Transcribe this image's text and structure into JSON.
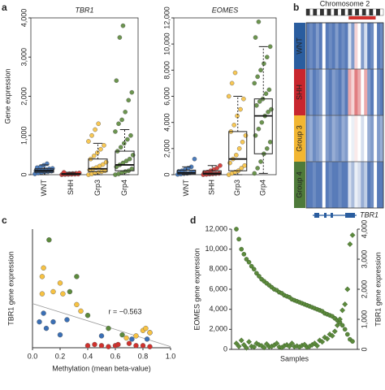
{
  "chart_data": [
    {
      "type": "box",
      "panel_label": "a",
      "title": "TBR1",
      "ylabel": "Gene expression",
      "categories": [
        "WNT",
        "SHH",
        "Grp3",
        "Grp4"
      ],
      "colors": [
        "#3a6fb5",
        "#d0312d",
        "#f7c242",
        "#5c8a3c"
      ],
      "boxes": [
        {
          "whisker_low": 0,
          "q1": 60,
          "median": 100,
          "q3": 150,
          "whisker_high": 250
        },
        {
          "whisker_low": 0,
          "q1": 5,
          "median": 15,
          "q3": 30,
          "whisker_high": 60
        },
        {
          "whisker_low": 0,
          "q1": 80,
          "median": 150,
          "q3": 400,
          "whisker_high": 800
        },
        {
          "whisker_low": 0,
          "q1": 100,
          "median": 250,
          "q3": 600,
          "whisker_high": 1150
        }
      ],
      "points": [
        [
          20,
          40,
          60,
          70,
          80,
          90,
          100,
          110,
          120,
          130,
          150,
          160,
          180,
          200,
          240,
          280
        ],
        [
          0,
          5,
          8,
          10,
          12,
          15,
          18,
          20,
          25,
          30,
          35,
          45,
          60
        ],
        [
          0,
          20,
          40,
          60,
          80,
          100,
          120,
          150,
          180,
          220,
          260,
          320,
          400,
          480,
          560,
          650,
          750,
          850,
          1000,
          1150,
          1300
        ],
        [
          0,
          20,
          50,
          80,
          100,
          150,
          200,
          250,
          300,
          350,
          400,
          500,
          600,
          700,
          800,
          900,
          1000,
          1100,
          1300,
          1400,
          1600,
          1900,
          2100,
          2400,
          3500,
          3800
        ]
      ],
      "ylim": [
        0,
        4000
      ],
      "yticks": [
        0,
        {
          "value": 1000,
          "label": "1,000"
        },
        {
          "value": 2000,
          "label": "2,000"
        },
        {
          "value": 3000,
          "label": "3,000"
        },
        {
          "value": 4000,
          "label": "4,000"
        }
      ]
    },
    {
      "type": "box",
      "title": "EOMES",
      "categories": [
        "WNT",
        "SHH",
        "Grp3",
        "Grp4"
      ],
      "colors": [
        "#3a6fb5",
        "#d0312d",
        "#f7c242",
        "#5c8a3c"
      ],
      "boxes": [
        {
          "whisker_low": 0,
          "q1": 50,
          "median": 150,
          "q3": 350,
          "whisker_high": 600
        },
        {
          "whisker_low": 0,
          "q1": 20,
          "median": 100,
          "q3": 300,
          "whisker_high": 700
        },
        {
          "whisker_low": 0,
          "q1": 300,
          "median": 1200,
          "q3": 3300,
          "whisker_high": 6000
        },
        {
          "whisker_low": 100,
          "q1": 1600,
          "median": 4500,
          "q3": 5800,
          "whisker_high": 9800
        }
      ],
      "points": [
        [
          20,
          50,
          80,
          100,
          150,
          200,
          250,
          300,
          400,
          500,
          600,
          1200
        ],
        [
          0,
          20,
          40,
          60,
          80,
          100,
          150,
          200,
          300,
          400,
          500,
          700
        ],
        [
          0,
          100,
          200,
          300,
          500,
          700,
          900,
          1200,
          1500,
          2000,
          2500,
          3000,
          3300,
          3800,
          4500,
          5000,
          5800,
          6000,
          7000,
          7800
        ],
        [
          100,
          500,
          1000,
          1600,
          2000,
          2500,
          3000,
          3500,
          4000,
          4500,
          4800,
          5000,
          5300,
          5600,
          5800,
          6200,
          6500,
          7000,
          7500,
          8000,
          8500,
          9000,
          9800,
          10500,
          11700
        ]
      ],
      "ylim": [
        0,
        12000
      ],
      "yticks": [
        0,
        {
          "value": 2000,
          "label": "2,000"
        },
        {
          "value": 4000,
          "label": "4,000"
        },
        {
          "value": 6000,
          "label": "6,000"
        },
        {
          "value": 8000,
          "label": "8,000"
        },
        {
          "value": 10000,
          "label": "10,000"
        },
        {
          "value": 12000,
          "label": "12,000"
        }
      ]
    },
    {
      "type": "heatmap",
      "panel_label": "b",
      "title": "Chromosome 2",
      "gene": "TBR1",
      "groups": [
        "WNT",
        "SHH",
        "Group 3",
        "Group 4"
      ],
      "group_colors": [
        "#2a5d9f",
        "#c8262e",
        "#f2b632",
        "#4e7a3a"
      ],
      "values": [
        [
          0.9,
          0.85,
          0.9,
          0.8,
          0.9,
          0.5,
          0.9,
          0.85,
          0.9,
          0.8,
          0.9,
          0.85,
          0.9,
          0.6,
          0.8,
          0.4,
          0.5,
          0.8,
          0.6,
          0.9,
          0.85,
          0.5,
          0.9,
          0.85
        ],
        [
          0.9,
          0.8,
          0.9,
          0.85,
          0.8,
          0.5,
          0.85,
          0.9,
          0.8,
          0.85,
          0.9,
          0.8,
          0.9,
          0.3,
          0.4,
          0.2,
          0.3,
          0.5,
          0.3,
          0.8,
          0.9,
          0.5,
          0.85,
          0.9
        ],
        [
          0.8,
          0.75,
          0.85,
          0.8,
          0.75,
          0.5,
          0.8,
          0.85,
          0.75,
          0.8,
          0.85,
          0.75,
          0.8,
          0.5,
          0.55,
          0.45,
          0.5,
          0.6,
          0.5,
          0.75,
          0.8,
          0.5,
          0.8,
          0.75
        ],
        [
          0.9,
          0.9,
          0.85,
          0.9,
          0.9,
          0.5,
          0.9,
          0.85,
          0.9,
          0.9,
          0.85,
          0.9,
          0.9,
          0.6,
          0.7,
          0.55,
          0.6,
          0.75,
          0.65,
          0.9,
          0.85,
          0.5,
          0.9,
          0.9
        ]
      ]
    },
    {
      "type": "scatter",
      "panel_label": "c",
      "xlabel": "Methylation (mean beta-value)",
      "ylabel": "TBR1 gene expression",
      "annotation": "r = −0.563",
      "series": [
        {
          "color": "#3a6fb5",
          "x": [
            0.05,
            0.08,
            0.1,
            0.15,
            0.2,
            0.25,
            0.5,
            0.72,
            0.83,
            0.85
          ],
          "values": [
            120,
            160,
            90,
            120,
            60,
            130,
            55,
            40,
            40,
            70
          ]
        },
        {
          "color": "#f7c242",
          "x": [
            0.07,
            0.07,
            0.08,
            0.15,
            0.2,
            0.22,
            0.32,
            0.35,
            0.68,
            0.75,
            0.8,
            0.82,
            0.85
          ],
          "values": [
            250,
            330,
            370,
            260,
            300,
            250,
            200,
            170,
            45,
            55,
            80,
            90,
            70
          ]
        },
        {
          "color": "#5c8a3c",
          "x": [
            0.12,
            0.27,
            0.32,
            0.4,
            0.55,
            0.65
          ],
          "values": [
            500,
            260,
            330,
            150,
            90,
            60
          ]
        },
        {
          "color": "#d0312d",
          "x": [
            0.4,
            0.45,
            0.5,
            0.55,
            0.6,
            0.62,
            0.7,
            0.75,
            0.8,
            0.85
          ],
          "values": [
            10,
            15,
            10,
            5,
            10,
            15,
            20,
            10,
            10,
            5
          ]
        }
      ],
      "trend_line": {
        "x": [
          0,
          1
        ],
        "y": [
          205,
          5
        ]
      },
      "xlim": [
        0,
        1
      ],
      "ylim": [
        0,
        550
      ],
      "xticks": [
        {
          "value": 0,
          "label": "0.0"
        },
        0.2,
        0.4,
        0.6,
        0.8,
        {
          "value": 1,
          "label": "1.0"
        }
      ]
    },
    {
      "type": "dual_scatter",
      "panel_label": "d",
      "xlabel": "Samples",
      "ylabel": "EOMES gene expression",
      "y2label": "TBR1 gene expression",
      "series": [
        {
          "color": "#5c8a3c",
          "marker": "circle",
          "values": [
            12000,
            11000,
            10000,
            9500,
            9000,
            8700,
            8300,
            8000,
            7600,
            7300,
            7000,
            6800,
            6600,
            6400,
            6200,
            6000,
            5900,
            5700,
            5600,
            5400,
            5300,
            5200,
            5000,
            4900,
            4800,
            4700,
            4600,
            4500,
            4400,
            4300,
            4200,
            4100,
            4000,
            3900,
            3800,
            3600,
            3500,
            3400,
            3300,
            3100,
            2900,
            2700,
            2400,
            2000,
            1500,
            1000,
            800
          ]
        },
        {
          "color": "#5c8a3c",
          "marker": "diamond",
          "axis": "y2",
          "values": [
            200,
            100,
            300,
            150,
            50,
            250,
            100,
            80,
            200,
            150,
            120,
            60,
            180,
            90,
            100,
            140,
            200,
            80,
            60,
            120,
            150,
            100,
            200,
            90,
            110,
            80,
            130,
            160,
            70,
            100,
            150,
            200,
            120,
            300,
            250,
            400,
            350,
            500,
            450,
            600,
            800,
            1000,
            1300,
            1500,
            2000,
            3500,
            3800
          ]
        }
      ],
      "ylim": [
        0,
        12000
      ],
      "yticks": [
        0,
        {
          "value": 2000,
          "label": "2,000"
        },
        {
          "value": 4000,
          "label": "4,000"
        },
        {
          "value": 6000,
          "label": "6,000"
        },
        {
          "value": 8000,
          "label": "8,000"
        },
        {
          "value": 10000,
          "label": "10,000"
        },
        {
          "value": 12000,
          "label": "12,000"
        }
      ],
      "y2lim": [
        0,
        4000
      ],
      "y2ticks": [
        0,
        {
          "value": 1000,
          "label": "1,000"
        },
        {
          "value": 2000,
          "label": "2,000"
        },
        {
          "value": 3000,
          "label": "3,000"
        },
        {
          "value": 4000,
          "label": "4,000"
        }
      ]
    }
  ]
}
